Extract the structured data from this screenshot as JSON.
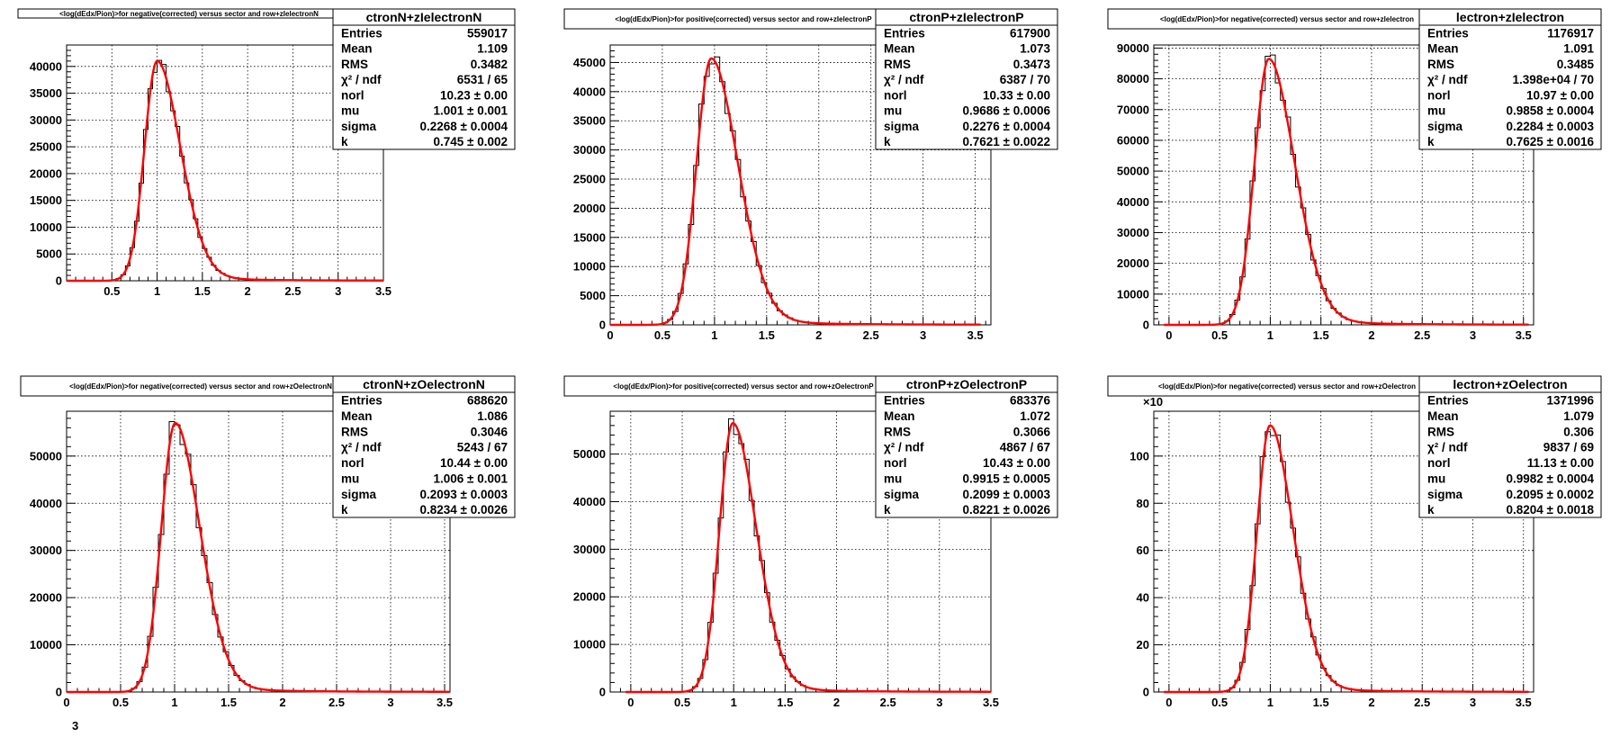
{
  "colors": {
    "fit": "#ff0000",
    "hist": "#000000",
    "grid": "#000000",
    "frame": "#000000",
    "background": "#ffffff"
  },
  "footer_mark": "3",
  "chart_data": [
    {
      "type": "histogram",
      "title": "<log(dEdx/Pion)>for negative(corrected) versus sector and row+zIelectronN",
      "stats_title": "ctronN+zIelectronN",
      "xlim": [
        0,
        3.5
      ],
      "x_ticks": [
        "0.5",
        "1",
        "1.5",
        "2",
        "2.5",
        "3",
        "3.5"
      ],
      "x_tick_values": [
        0.5,
        1,
        1.5,
        2,
        2.5,
        3,
        3.5
      ],
      "ylim": [
        0,
        44000
      ],
      "y_ticks": [
        "0",
        "5000",
        "10000",
        "15000",
        "20000",
        "25000",
        "30000",
        "35000",
        "40000"
      ],
      "y_tick_values": [
        0,
        5000,
        10000,
        15000,
        20000,
        25000,
        30000,
        35000,
        40000
      ],
      "y_multiplier": "",
      "peak": 41000,
      "fit": {
        "norl": "10.23 ± 0.00",
        "mu": 1.001,
        "sigma": 0.2268,
        "k": 0.745
      },
      "stats": [
        {
          "label": "Entries",
          "value": "559017"
        },
        {
          "label": "Mean",
          "value": "1.109"
        },
        {
          "label": "RMS",
          "value": "0.3482"
        },
        {
          "label": "χ² / ndf",
          "value": "6531 / 65"
        },
        {
          "label": "norl",
          "value": "10.23 ± 0.00"
        },
        {
          "label": "mu",
          "value": "1.001 ± 0.001"
        },
        {
          "label": "sigma",
          "value": "0.2268 ± 0.0004"
        },
        {
          "label": "k",
          "value": "0.745 ± 0.002"
        }
      ]
    },
    {
      "type": "histogram",
      "title": "<log(dEdx/Pion)>for positive(corrected) versus sector and row+zIelectronP",
      "stats_title": "ctronP+zIelectronP",
      "xlim": [
        0,
        3.65
      ],
      "x_ticks": [
        "0",
        "0.5",
        "1",
        "1.5",
        "2",
        "2.5",
        "3",
        "3.5"
      ],
      "x_tick_values": [
        0,
        0.5,
        1,
        1.5,
        2,
        2.5,
        3,
        3.5
      ],
      "ylim": [
        0,
        48000
      ],
      "y_ticks": [
        "0",
        "5000",
        "10000",
        "15000",
        "20000",
        "25000",
        "30000",
        "35000",
        "40000",
        "45000"
      ],
      "y_tick_values": [
        0,
        5000,
        10000,
        15000,
        20000,
        25000,
        30000,
        35000,
        40000,
        45000
      ],
      "y_multiplier": "",
      "peak": 45700,
      "fit": {
        "norl": "10.33 ± 0.00",
        "mu": 0.9686,
        "sigma": 0.2276,
        "k": 0.7621
      },
      "stats": [
        {
          "label": "Entries",
          "value": "617900"
        },
        {
          "label": "Mean",
          "value": "1.073"
        },
        {
          "label": "RMS",
          "value": "0.3473"
        },
        {
          "label": "χ² / ndf",
          "value": "6387 / 70"
        },
        {
          "label": "norl",
          "value": "10.33 ± 0.00"
        },
        {
          "label": "mu",
          "value": "0.9686 ± 0.0006"
        },
        {
          "label": "sigma",
          "value": "0.2276 ± 0.0004"
        },
        {
          "label": "k",
          "value": "0.7621 ± 0.0022"
        }
      ]
    },
    {
      "type": "histogram",
      "title": "<log(dEdx/Pion)>for negative(corrected) versus sector and row+zIelectron",
      "stats_title": "lectron+zIelectron",
      "xlim": [
        -0.15,
        3.6
      ],
      "x_ticks": [
        "0",
        "0.5",
        "1",
        "1.5",
        "2",
        "2.5",
        "3",
        "3.5"
      ],
      "x_tick_values": [
        0,
        0.5,
        1,
        1.5,
        2,
        2.5,
        3,
        3.5
      ],
      "ylim": [
        0,
        91000
      ],
      "y_ticks": [
        "0",
        "10000",
        "20000",
        "30000",
        "40000",
        "50000",
        "60000",
        "70000",
        "80000",
        "90000"
      ],
      "y_tick_values": [
        0,
        10000,
        20000,
        30000,
        40000,
        50000,
        60000,
        70000,
        80000,
        90000
      ],
      "y_multiplier": "",
      "peak": 86500,
      "fit": {
        "norl": "10.97 ± 0.00",
        "mu": 0.9858,
        "sigma": 0.2284,
        "k": 0.7625
      },
      "stats": [
        {
          "label": "Entries",
          "value": "1176917"
        },
        {
          "label": "Mean",
          "value": "1.091"
        },
        {
          "label": "RMS",
          "value": "0.3485"
        },
        {
          "label": "χ² / ndf",
          "value": "1.398e+04 / 70"
        },
        {
          "label": "norl",
          "value": "10.97 ± 0.00"
        },
        {
          "label": "mu",
          "value": "0.9858 ± 0.0004"
        },
        {
          "label": "sigma",
          "value": "0.2284 ± 0.0003"
        },
        {
          "label": "k",
          "value": "0.7625 ± 0.0016"
        }
      ]
    },
    {
      "type": "histogram",
      "title": "<log(dEdx/Pion)>for negative(corrected) versus sector and row+zOelectronN",
      "stats_title": "ctronN+zOelectronN",
      "xlim": [
        0,
        3.55
      ],
      "x_ticks": [
        "0",
        "0.5",
        "1",
        "1.5",
        "2",
        "2.5",
        "3",
        "3.5"
      ],
      "x_tick_values": [
        0,
        0.5,
        1,
        1.5,
        2,
        2.5,
        3,
        3.5
      ],
      "ylim": [
        0,
        59500
      ],
      "y_ticks": [
        "0",
        "10000",
        "20000",
        "30000",
        "40000",
        "50000"
      ],
      "y_tick_values": [
        0,
        10000,
        20000,
        30000,
        40000,
        50000
      ],
      "y_multiplier": "",
      "peak": 57000,
      "fit": {
        "norl": "10.44 ± 0.00",
        "mu": 1.006,
        "sigma": 0.2093,
        "k": 0.8234
      },
      "stats": [
        {
          "label": "Entries",
          "value": "688620"
        },
        {
          "label": "Mean",
          "value": "1.086"
        },
        {
          "label": "RMS",
          "value": "0.3046"
        },
        {
          "label": "χ² / ndf",
          "value": "5243 / 67"
        },
        {
          "label": "norl",
          "value": "10.44 ± 0.00"
        },
        {
          "label": "mu",
          "value": "1.006 ± 0.001"
        },
        {
          "label": "sigma",
          "value": "0.2093 ± 0.0003"
        },
        {
          "label": "k",
          "value": "0.8234 ± 0.0026"
        }
      ]
    },
    {
      "type": "histogram",
      "title": "<log(dEdx/Pion)>for positive(corrected) versus sector and row+zOelectronP",
      "stats_title": "ctronP+zOelectronP",
      "xlim": [
        -0.2,
        3.5
      ],
      "x_ticks": [
        "0",
        "0.5",
        "1",
        "1.5",
        "2",
        "2.5",
        "3",
        "3.5"
      ],
      "x_tick_values": [
        0,
        0.5,
        1,
        1.5,
        2,
        2.5,
        3,
        3.5
      ],
      "ylim": [
        0,
        59000
      ],
      "y_ticks": [
        "0",
        "10000",
        "20000",
        "30000",
        "40000",
        "50000"
      ],
      "y_tick_values": [
        0,
        10000,
        20000,
        30000,
        40000,
        50000
      ],
      "y_multiplier": "",
      "peak": 56500,
      "fit": {
        "norl": "10.43 ± 0.00",
        "mu": 0.9915,
        "sigma": 0.2099,
        "k": 0.8221
      },
      "stats": [
        {
          "label": "Entries",
          "value": "683376"
        },
        {
          "label": "Mean",
          "value": "1.072"
        },
        {
          "label": "RMS",
          "value": "0.3066"
        },
        {
          "label": "χ² / ndf",
          "value": "4867 / 67"
        },
        {
          "label": "norl",
          "value": "10.43 ± 0.00"
        },
        {
          "label": "mu",
          "value": "0.9915 ± 0.0005"
        },
        {
          "label": "sigma",
          "value": "0.2099 ± 0.0003"
        },
        {
          "label": "k",
          "value": "0.8221 ± 0.0026"
        }
      ]
    },
    {
      "type": "histogram",
      "title": "<log(dEdx/Pion)>for negative(corrected) versus sector and row+zOelectron",
      "stats_title": "lectron+zOelectron",
      "xlim": [
        -0.15,
        3.6
      ],
      "x_ticks": [
        "0",
        "0.5",
        "1",
        "1.5",
        "2",
        "2.5",
        "3",
        "3.5"
      ],
      "x_tick_values": [
        0,
        0.5,
        1,
        1.5,
        2,
        2.5,
        3,
        3.5
      ],
      "ylim": [
        0,
        119
      ],
      "y_ticks": [
        "0",
        "20",
        "40",
        "60",
        "80",
        "100"
      ],
      "y_tick_values": [
        0,
        20,
        40,
        60,
        80,
        100
      ],
      "y_multiplier": "×10",
      "peak": 113,
      "fit": {
        "norl": "11.13 ± 0.00",
        "mu": 0.9982,
        "sigma": 0.2095,
        "k": 0.8204
      },
      "stats": [
        {
          "label": "Entries",
          "value": "1371996"
        },
        {
          "label": "Mean",
          "value": "1.079"
        },
        {
          "label": "RMS",
          "value": "0.306"
        },
        {
          "label": "χ² / ndf",
          "value": "9837 / 69"
        },
        {
          "label": "norl",
          "value": "11.13 ± 0.00"
        },
        {
          "label": "mu",
          "value": "0.9982 ± 0.0004"
        },
        {
          "label": "sigma",
          "value": "0.2095 ± 0.0002"
        },
        {
          "label": "k",
          "value": "0.8204 ± 0.0018"
        }
      ]
    }
  ]
}
